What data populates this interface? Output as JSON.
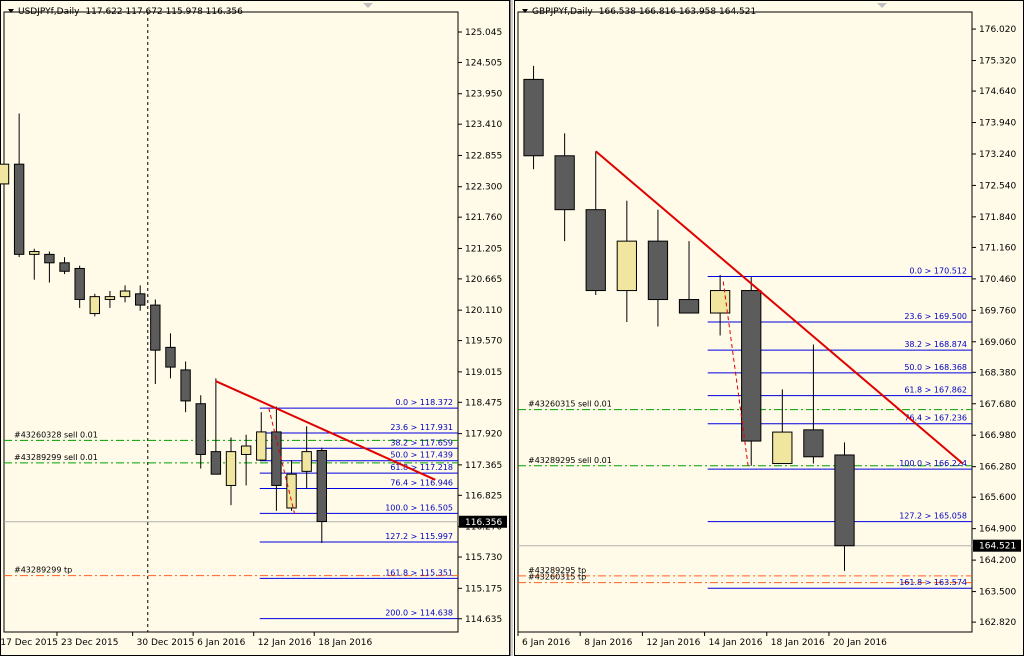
{
  "colors": {
    "background": "#fffbe8",
    "grid": "#c8c8c8",
    "bull_body": "#f0e6a0",
    "bear_body": "#5c5c5c",
    "candle_outline": "#000000",
    "trendline": "#e00000",
    "fib": "#0000e0",
    "fib_label": "#0000c0",
    "sell_line": "#00a000",
    "tp_line": "#ff6020",
    "price_tag_bg": "#000000",
    "price_tag_fg": "#ffffff"
  },
  "chart_data": [
    {
      "type": "candlestick",
      "symbol": "USDJPYf,Daily",
      "header_ohlc": "117.622 117.672 115.978 116.356",
      "ylim": [
        114.4,
        125.4
      ],
      "y_ticks": [
        "125.045",
        "124.505",
        "123.950",
        "123.410",
        "122.855",
        "122.300",
        "121.760",
        "121.205",
        "120.665",
        "120.110",
        "119.570",
        "119.015",
        "118.475",
        "117.920",
        "117.365",
        "116.825",
        "116.270",
        "115.730",
        "115.175",
        "114.635"
      ],
      "current_price": "116.356",
      "x_labels": [
        {
          "label": "17 Dec 2015",
          "i": 0
        },
        {
          "label": "23 Dec 2015",
          "i": 4
        },
        {
          "label": "30 Dec 2015",
          "i": 9
        },
        {
          "label": "6 Jan 2016",
          "i": 13
        },
        {
          "label": "12 Jan 2016",
          "i": 17
        },
        {
          "label": "18 Jan 2016",
          "i": 21
        }
      ],
      "slots": 30,
      "first_slot_offset": -0.5,
      "vline_slot": 10,
      "candles": [
        {
          "o": 122.35,
          "h": 122.85,
          "l": 121.95,
          "c": 122.7
        },
        {
          "o": 122.7,
          "h": 123.6,
          "l": 121.05,
          "c": 121.1
        },
        {
          "o": 121.1,
          "h": 121.2,
          "l": 120.65,
          "c": 121.15
        },
        {
          "o": 121.1,
          "h": 121.15,
          "l": 120.6,
          "c": 120.95
        },
        {
          "o": 120.95,
          "h": 121.05,
          "l": 120.75,
          "c": 120.8
        },
        {
          "o": 120.85,
          "h": 120.9,
          "l": 120.15,
          "c": 120.3
        },
        {
          "o": 120.05,
          "h": 120.4,
          "l": 120.0,
          "c": 120.35
        },
        {
          "o": 120.3,
          "h": 120.45,
          "l": 120.15,
          "c": 120.35
        },
        {
          "o": 120.35,
          "h": 120.55,
          "l": 120.25,
          "c": 120.45
        },
        {
          "o": 120.4,
          "h": 120.55,
          "l": 120.1,
          "c": 120.2
        },
        {
          "o": 120.2,
          "h": 120.3,
          "l": 118.8,
          "c": 119.4
        },
        {
          "o": 119.45,
          "h": 119.7,
          "l": 118.9,
          "c": 119.1
        },
        {
          "o": 119.05,
          "h": 119.2,
          "l": 118.3,
          "c": 118.5
        },
        {
          "o": 118.45,
          "h": 118.6,
          "l": 117.3,
          "c": 117.55
        },
        {
          "o": 117.6,
          "h": 118.9,
          "l": 117.25,
          "c": 117.2
        },
        {
          "o": 117.0,
          "h": 117.85,
          "l": 116.65,
          "c": 117.6
        },
        {
          "o": 117.55,
          "h": 117.9,
          "l": 117.0,
          "c": 117.7
        },
        {
          "o": 117.45,
          "h": 118.3,
          "l": 117.45,
          "c": 117.95
        },
        {
          "o": 117.95,
          "h": 118.4,
          "l": 116.55,
          "c": 117.0
        },
        {
          "o": 116.6,
          "h": 117.45,
          "l": 116.55,
          "c": 117.2
        },
        {
          "o": 117.25,
          "h": 118.05,
          "l": 116.95,
          "c": 117.6
        },
        {
          "o": 117.62,
          "h": 117.67,
          "l": 115.98,
          "c": 116.36
        }
      ],
      "trendlines": [
        {
          "color": "trendline",
          "width": 2,
          "dash": false,
          "from": {
            "i": 14,
            "p": 118.85
          },
          "to": {
            "i": 28.5,
            "p": 117.1
          }
        },
        {
          "color": "trendline",
          "width": 1,
          "dash": true,
          "from": {
            "i": 17.5,
            "p": 118.37
          },
          "to": {
            "i": 19.2,
            "p": 116.5
          }
        }
      ],
      "fib_levels": [
        {
          "label": "0.0 > 118.372",
          "p": 118.372
        },
        {
          "label": "23.6 > 117.931",
          "p": 117.931
        },
        {
          "label": "38.2 > 117.659",
          "p": 117.659
        },
        {
          "label": "50.0 > 117.439",
          "p": 117.439
        },
        {
          "label": "61.8 > 117.218",
          "p": 117.218
        },
        {
          "label": "76.4 > 116.946",
          "p": 116.946
        },
        {
          "label": "100.0 > 116.505",
          "p": 116.505
        },
        {
          "label": "127.2 > 115.997",
          "p": 115.997
        },
        {
          "label": "161.8 > 115.351",
          "p": 115.351
        },
        {
          "label": "200.0 > 114.638",
          "p": 114.638
        }
      ],
      "fib_start_slot": 17.4,
      "order_lines": [
        {
          "label": "#43260328 sell 0.01",
          "p": 117.8,
          "kind": "sell"
        },
        {
          "label": "#43289299 sell 0.01",
          "p": 117.4,
          "kind": "sell"
        },
        {
          "label": "#43289299 tp",
          "p": 115.4,
          "kind": "tp"
        }
      ]
    },
    {
      "type": "candlestick",
      "symbol": "GBPJPYf,Daily",
      "header_ohlc": "166.538 166.816 163.958 164.521",
      "ylim": [
        162.6,
        176.4
      ],
      "y_ticks": [
        "176.020",
        "175.320",
        "174.640",
        "173.940",
        "173.240",
        "172.540",
        "171.840",
        "171.160",
        "170.460",
        "169.760",
        "169.060",
        "168.380",
        "167.680",
        "166.980",
        "166.280",
        "165.600",
        "164.900",
        "164.200",
        "163.500",
        "162.820"
      ],
      "current_price": "164.521",
      "x_labels": [
        {
          "label": "6 Jan 2016",
          "i": 0
        },
        {
          "label": "8 Jan 2016",
          "i": 2
        },
        {
          "label": "12 Jan 2016",
          "i": 4
        },
        {
          "label": "14 Jan 2016",
          "i": 6
        },
        {
          "label": "18 Jan 2016",
          "i": 8
        },
        {
          "label": "20 Jan 2016",
          "i": 10
        }
      ],
      "slots": 14.6,
      "first_slot_offset": 0,
      "vline_slot": null,
      "candles": [
        {
          "o": 174.9,
          "h": 175.2,
          "l": 172.9,
          "c": 173.2
        },
        {
          "o": 173.2,
          "h": 173.7,
          "l": 171.3,
          "c": 172.0
        },
        {
          "o": 172.0,
          "h": 173.3,
          "l": 170.1,
          "c": 170.2
        },
        {
          "o": 170.2,
          "h": 172.2,
          "l": 169.5,
          "c": 171.3
        },
        {
          "o": 171.3,
          "h": 172.0,
          "l": 169.4,
          "c": 170.0
        },
        {
          "o": 170.0,
          "h": 171.3,
          "l": 169.8,
          "c": 169.7
        },
        {
          "o": 169.7,
          "h": 170.55,
          "l": 169.2,
          "c": 170.2
        },
        {
          "o": 170.2,
          "h": 170.5,
          "l": 166.3,
          "c": 166.85
        },
        {
          "o": 166.35,
          "h": 168.0,
          "l": 166.35,
          "c": 167.05
        },
        {
          "o": 167.1,
          "h": 169.0,
          "l": 166.35,
          "c": 166.5
        },
        {
          "o": 166.54,
          "h": 166.82,
          "l": 163.96,
          "c": 164.52
        }
      ],
      "trendlines": [
        {
          "color": "trendline",
          "width": 2,
          "dash": false,
          "from": {
            "i": 2,
            "p": 173.3
          },
          "to": {
            "i": 13.8,
            "p": 166.35
          }
        },
        {
          "color": "trendline",
          "width": 1,
          "dash": true,
          "from": {
            "i": 6.1,
            "p": 170.4
          },
          "to": {
            "i": 6.9,
            "p": 166.3
          }
        }
      ],
      "fib_levels": [
        {
          "label": "0.0 > 170.512",
          "p": 170.512
        },
        {
          "label": "23.6 > 169.500",
          "p": 169.5
        },
        {
          "label": "38.2 > 168.874",
          "p": 168.874
        },
        {
          "label": "50.0 > 168.368",
          "p": 168.368
        },
        {
          "label": "61.8 > 167.862",
          "p": 167.862
        },
        {
          "label": "76.4 > 167.236",
          "p": 167.236
        },
        {
          "label": "100.0 > 166.224",
          "p": 166.224
        },
        {
          "label": "127.2 > 165.058",
          "p": 165.058
        },
        {
          "label": "161.8 > 163.574",
          "p": 163.574
        }
      ],
      "fib_start_slot": 6.1,
      "order_lines": [
        {
          "label": "#43260315 sell 0.01",
          "p": 167.55,
          "kind": "sell"
        },
        {
          "label": "#43289295 sell 0.01",
          "p": 166.3,
          "kind": "sell"
        },
        {
          "label": "#43289295 tp",
          "p": 163.85,
          "kind": "tp"
        },
        {
          "label": "#43260315 tp",
          "p": 163.7,
          "kind": "tp"
        }
      ]
    }
  ]
}
